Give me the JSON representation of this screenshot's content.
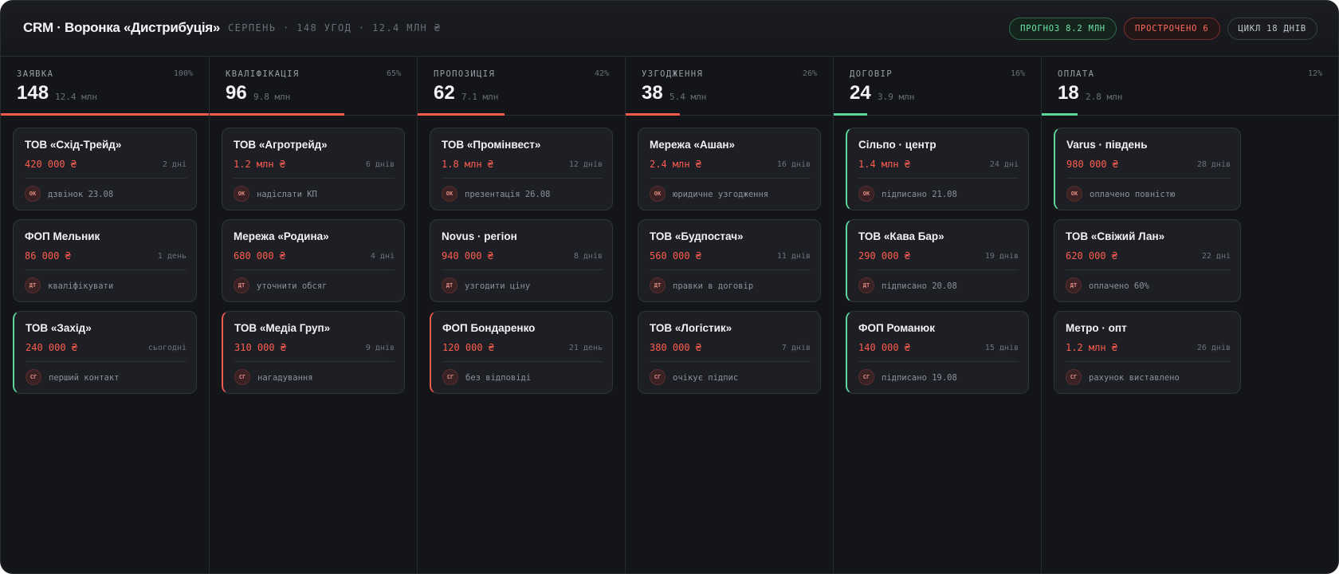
{
  "header": {
    "title": "CRM · Воронка «Дистрибуція»",
    "subtitle": "СЕРПЕНЬ · 148 УГОД · 12.4 МЛН ₴",
    "pills": {
      "forecast": "ПРОГНОЗ 8.2 МЛН",
      "overdue": "ПРОСТРОЧЕНО 6",
      "cycle": "ЦИКЛ 18 ДНІВ"
    }
  },
  "colors": {
    "accent_red": "#ef5b4e",
    "accent_green": "#5fd69b",
    "amount": "#ff5d4f",
    "background": "#131519"
  },
  "columns": [
    {
      "name": "ЗАЯВКА",
      "pct": "100%",
      "pct_value": 100,
      "count": "148",
      "sum": "12.4 млн",
      "bar_color": "#ef5b4e",
      "cards": [
        {
          "name": "ТОВ «Схід-Трейд»",
          "amount": "420 000 ₴",
          "days": "2 дні",
          "avatar": "ОК",
          "note": "дзвінок 23.08",
          "accent": "none"
        },
        {
          "name": "ФОП Мельник",
          "amount": "86 000 ₴",
          "days": "1 день",
          "avatar": "ДТ",
          "note": "кваліфікувати",
          "accent": "none"
        },
        {
          "name": "ТОВ «Захід»",
          "amount": "240 000 ₴",
          "days": "сьогодні",
          "avatar": "СГ",
          "note": "перший контакт",
          "accent": "green"
        }
      ]
    },
    {
      "name": "КВАЛІФІКАЦІЯ",
      "pct": "65%",
      "pct_value": 65,
      "count": "96",
      "sum": "9.8 млн",
      "bar_color": "#ef5b4e",
      "cards": [
        {
          "name": "ТОВ «Агротрейд»",
          "amount": "1.2 млн ₴",
          "days": "6 днів",
          "avatar": "ОК",
          "note": "надіслати КП",
          "accent": "none"
        },
        {
          "name": "Мережа «Родина»",
          "amount": "680 000 ₴",
          "days": "4 дні",
          "avatar": "ДТ",
          "note": "уточнити обсяг",
          "accent": "none"
        },
        {
          "name": "ТОВ «Медіа Груп»",
          "amount": "310 000 ₴",
          "days": "9 днів",
          "avatar": "СГ",
          "note": "нагадування",
          "accent": "red"
        }
      ]
    },
    {
      "name": "ПРОПОЗИЦІЯ",
      "pct": "42%",
      "pct_value": 42,
      "count": "62",
      "sum": "7.1 млн",
      "bar_color": "#ef5b4e",
      "cards": [
        {
          "name": "ТОВ «Промінвест»",
          "amount": "1.8 млн ₴",
          "days": "12 днів",
          "avatar": "ОК",
          "note": "презентація 26.08",
          "accent": "none"
        },
        {
          "name": "Novus · регіон",
          "amount": "940 000 ₴",
          "days": "8 днів",
          "avatar": "ДТ",
          "note": "узгодити ціну",
          "accent": "none"
        },
        {
          "name": "ФОП Бондаренко",
          "amount": "120 000 ₴",
          "days": "21 день",
          "avatar": "СГ",
          "note": "без відповіді",
          "accent": "red"
        }
      ]
    },
    {
      "name": "УЗГОДЖЕННЯ",
      "pct": "26%",
      "pct_value": 26,
      "count": "38",
      "sum": "5.4 млн",
      "bar_color": "#ef5b4e",
      "cards": [
        {
          "name": "Мережа «Ашан»",
          "amount": "2.4 млн ₴",
          "days": "16 днів",
          "avatar": "ОК",
          "note": "юридичне узгодження",
          "accent": "none"
        },
        {
          "name": "ТОВ «Будпостач»",
          "amount": "560 000 ₴",
          "days": "11 днів",
          "avatar": "ДТ",
          "note": "правки в договір",
          "accent": "none"
        },
        {
          "name": "ТОВ «Логістик»",
          "amount": "380 000 ₴",
          "days": "7 днів",
          "avatar": "СГ",
          "note": "очікує підпис",
          "accent": "none"
        }
      ]
    },
    {
      "name": "ДОГОВІР",
      "pct": "16%",
      "pct_value": 16,
      "count": "24",
      "sum": "3.9 млн",
      "bar_color": "#5fd69b",
      "cards": [
        {
          "name": "Сільпо · центр",
          "amount": "1.4 млн ₴",
          "days": "24 дні",
          "avatar": "ОК",
          "note": "підписано 21.08",
          "accent": "green"
        },
        {
          "name": "ТОВ «Кава Бар»",
          "amount": "290 000 ₴",
          "days": "19 днів",
          "avatar": "ДТ",
          "note": "підписано 20.08",
          "accent": "green"
        },
        {
          "name": "ФОП Романюк",
          "amount": "140 000 ₴",
          "days": "15 днів",
          "avatar": "СГ",
          "note": "підписано 19.08",
          "accent": "green"
        }
      ]
    },
    {
      "name": "ОПЛАТА",
      "pct": "12%",
      "pct_value": 12,
      "count": "18",
      "sum": "2.8 млн",
      "bar_color": "#5fd69b",
      "cards": [
        {
          "name": "Varus · південь",
          "amount": "980 000 ₴",
          "days": "28 днів",
          "avatar": "ОК",
          "note": "оплачено повністю",
          "accent": "green"
        },
        {
          "name": "ТОВ «Свіжий Лан»",
          "amount": "620 000 ₴",
          "days": "22 дні",
          "avatar": "ДТ",
          "note": "оплачено 60%",
          "accent": "none"
        },
        {
          "name": "Метро · опт",
          "amount": "1.2 млн ₴",
          "days": "26 днів",
          "avatar": "СГ",
          "note": "рахунок виставлено",
          "accent": "none"
        }
      ]
    }
  ]
}
